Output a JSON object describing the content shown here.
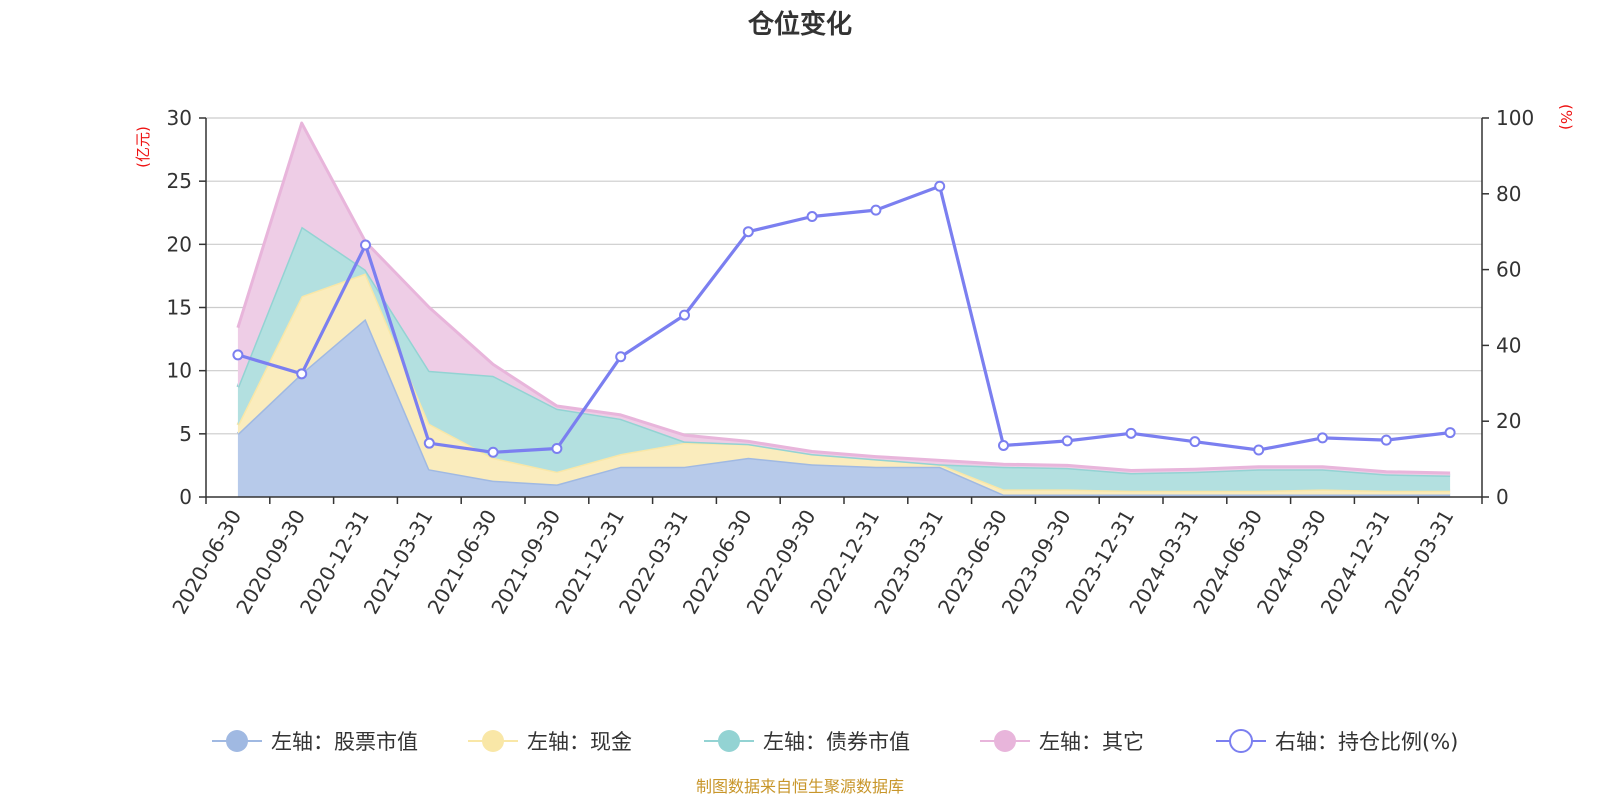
{
  "chart_data": {
    "type": "area",
    "title": "仓位变化",
    "source_note": "制图数据来自恒生聚源数据库",
    "left_axis": {
      "unit": "(亿元)",
      "ylim": [
        0,
        30
      ],
      "ticks": [
        0,
        5,
        10,
        15,
        20,
        25,
        30
      ]
    },
    "right_axis": {
      "unit": "(%)",
      "ylim": [
        0,
        100
      ],
      "ticks": [
        0,
        20,
        40,
        60,
        80,
        100
      ]
    },
    "grid": true,
    "legend_position": "bottom",
    "categories": [
      "2020-06-30",
      "2020-09-30",
      "2020-12-31",
      "2021-03-31",
      "2021-06-30",
      "2021-09-30",
      "2021-12-31",
      "2022-03-31",
      "2022-06-30",
      "2022-09-30",
      "2022-12-31",
      "2023-03-31",
      "2023-06-30",
      "2023-09-30",
      "2023-12-31",
      "2024-03-31",
      "2024-06-30",
      "2024-09-30",
      "2024-12-31",
      "2025-03-31"
    ],
    "stacked_series": [
      {
        "name": "左轴：股票市值",
        "color": "#a0b9e2",
        "fill": "#b7caea",
        "values": [
          5.0,
          9.8,
          14.1,
          2.2,
          1.3,
          1.0,
          2.4,
          2.4,
          3.1,
          2.6,
          2.4,
          2.4,
          0.2,
          0.2,
          0.2,
          0.2,
          0.2,
          0.2,
          0.2,
          0.2
        ]
      },
      {
        "name": "左轴：现金",
        "color": "#f9e7a7",
        "fill": "#faecbd",
        "values": [
          0.7,
          6.1,
          3.6,
          3.6,
          1.8,
          1.0,
          1.0,
          1.9,
          1.1,
          0.8,
          0.6,
          0.2,
          0.4,
          0.4,
          0.3,
          0.3,
          0.3,
          0.4,
          0.3,
          0.3
        ]
      },
      {
        "name": "左轴：债券市值",
        "color": "#93d3d3",
        "fill": "#b3e0e0",
        "values": [
          3.0,
          5.5,
          0.3,
          4.2,
          6.5,
          5.0,
          2.8,
          0.1,
          0.0,
          0.0,
          0.0,
          0.0,
          1.8,
          1.7,
          1.4,
          1.5,
          1.7,
          1.6,
          1.3,
          1.2
        ]
      },
      {
        "name": "左轴：其它",
        "color": "#e8b5db",
        "fill": "#eecde6",
        "values": [
          4.7,
          8.2,
          2.2,
          5.0,
          0.9,
          0.2,
          0.3,
          0.5,
          0.2,
          0.2,
          0.2,
          0.3,
          0.2,
          0.2,
          0.2,
          0.2,
          0.2,
          0.2,
          0.2,
          0.2
        ]
      }
    ],
    "line_series": {
      "name": "右轴：持仓比例(%)",
      "color": "#7b7ff0",
      "axis": "right",
      "values": [
        37.5,
        32.5,
        66.5,
        14.2,
        11.8,
        12.8,
        37.0,
        48.0,
        70.0,
        74.0,
        75.7,
        82.0,
        13.6,
        14.8,
        16.8,
        14.6,
        12.4,
        15.6,
        15.0,
        17.0
      ]
    }
  }
}
